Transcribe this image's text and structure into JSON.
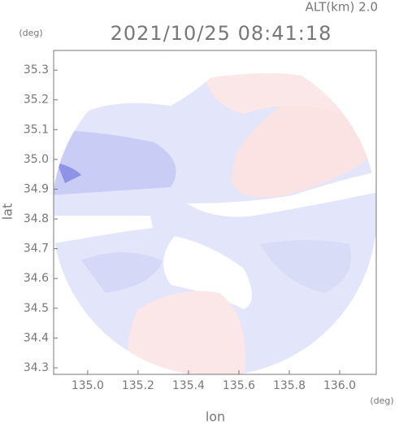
{
  "chart_data": {
    "type": "radar-map",
    "title": "2021/10/25 08:41:18",
    "subtitle": "ALT(km) 2.0",
    "x_label": "lon",
    "y_label": "lat",
    "x_unit": "(deg)",
    "y_unit": "(deg)",
    "xlim": [
      134.865,
      136.145
    ],
    "ylim": [
      34.278,
      35.366
    ],
    "xticks": [
      {
        "value": 135.0,
        "label": "135.0"
      },
      135.2,
      135.4,
      135.6,
      135.8,
      {
        "value": 136.0,
        "label": "136.0"
      }
    ],
    "yticks": [
      {
        "value": 34.3,
        "label": "34.3"
      },
      {
        "value": 34.4,
        "label": "34.4"
      },
      {
        "value": 34.5,
        "label": "34.5"
      },
      {
        "value": 34.6,
        "label": "34.6"
      },
      {
        "value": 34.7,
        "label": "34.7"
      },
      {
        "value": 34.8,
        "label": "34.8"
      },
      {
        "value": 34.9,
        "label": "34.9"
      },
      {
        "value": 35.0,
        "label": "35.0"
      },
      {
        "value": 35.1,
        "label": "35.1"
      },
      {
        "value": 35.2,
        "label": "35.2"
      },
      {
        "value": 35.3,
        "label": "35.3"
      }
    ]
  }
}
